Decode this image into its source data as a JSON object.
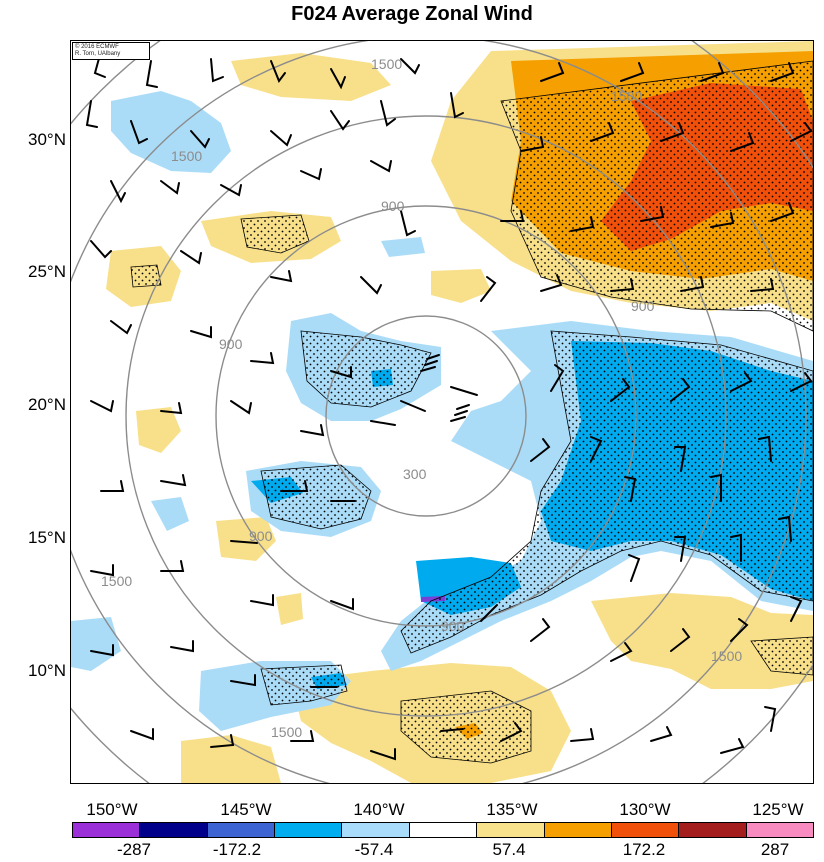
{
  "title": "F024 Average Zonal Wind",
  "credit": [
    "© 2016 ECMWF",
    "R. Torn, UAlbany"
  ],
  "lat_labels": [
    "30°N",
    "25°N",
    "20°N",
    "15°N",
    "10°N"
  ],
  "lon_labels": [
    "150°W",
    "145°W",
    "140°W",
    "135°W",
    "130°W",
    "125°W"
  ],
  "range_ring_labels": [
    "300",
    "900",
    "900",
    "900",
    "900",
    "900",
    "1500",
    "1500",
    "1500",
    "1500",
    "1500",
    "1500"
  ],
  "colorbar": {
    "colors": [
      "#9b30d9",
      "#00008b",
      "#3c64d2",
      "#00aef0",
      "#a9dcfa",
      "#ffffff",
      "#f8e28c",
      "#f5a000",
      "#f0500a",
      "#a51e1e",
      "#f88cc0"
    ],
    "labels": [
      "-287",
      "-172.2",
      "-57.4",
      "57.4",
      "172.2",
      "287"
    ]
  },
  "map_colors": {
    "light_blue": "#aadcf8",
    "blue": "#00aaee",
    "light_yellow": "#f8e08a",
    "orange": "#f5a000",
    "red": "#f0500a",
    "ring": "#8c8c8c"
  }
}
